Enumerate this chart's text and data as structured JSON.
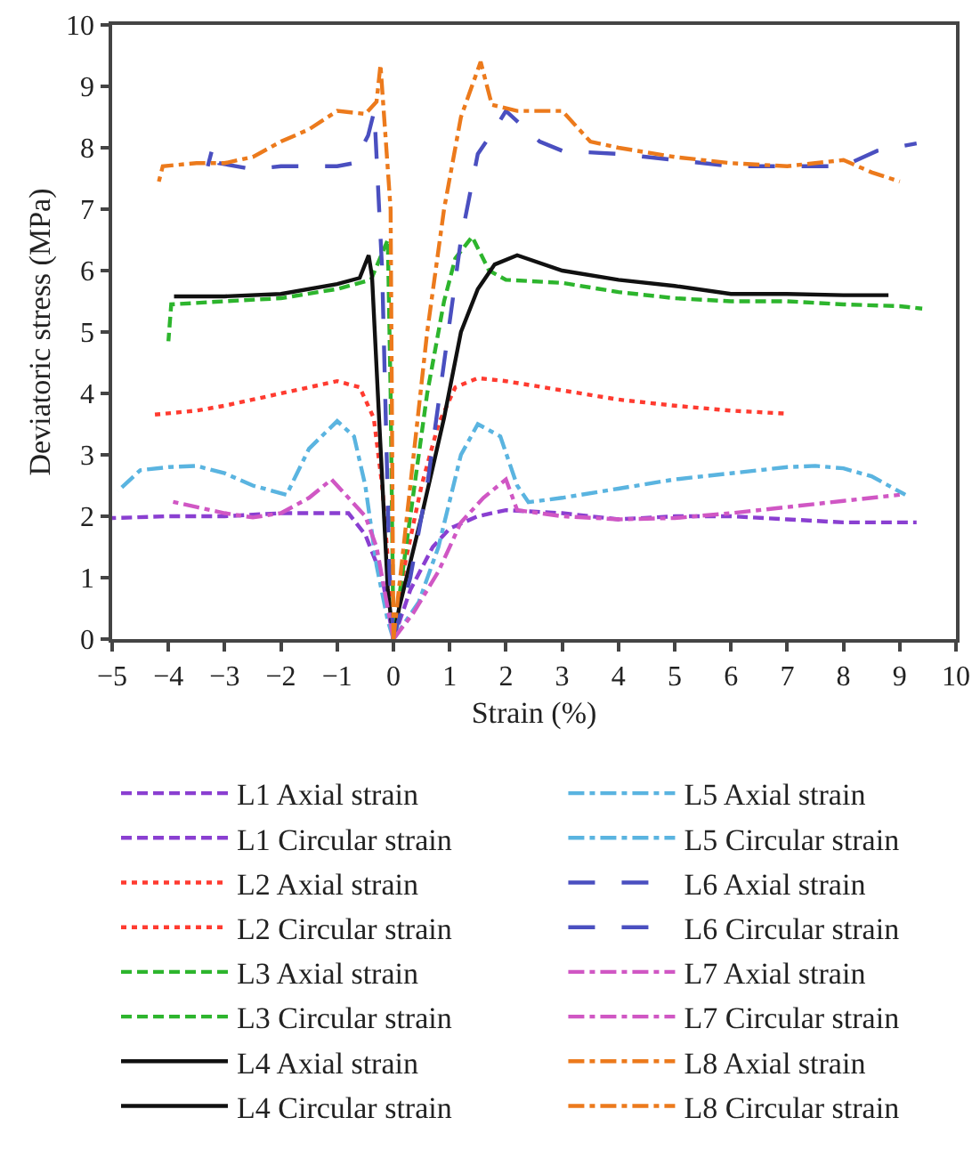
{
  "chart_data": {
    "type": "line",
    "xlabel": "Strain (%)",
    "ylabel": "Deviatoric stress (MPa)",
    "xlim": [
      -5,
      10
    ],
    "xticks": [
      -5,
      -4,
      -3,
      -2,
      -1,
      0,
      1,
      2,
      3,
      4,
      5,
      6,
      7,
      8,
      9,
      10
    ],
    "ylim": [
      0,
      10
    ],
    "yticks": [
      0,
      1,
      2,
      3,
      4,
      5,
      6,
      7,
      8,
      9,
      10
    ],
    "grid": false,
    "legend": "bottom",
    "marker": "none",
    "series": [
      {
        "name": "L1 Axial strain",
        "color": "#8a3fd1",
        "line_style": "dashed",
        "x": [
          0,
          0.3,
          0.7,
          1,
          1.5,
          2,
          3,
          4,
          5,
          6,
          7,
          8,
          9,
          9.3
        ],
        "values": [
          0,
          0.8,
          1.5,
          1.8,
          2.0,
          2.1,
          2.05,
          1.95,
          2.0,
          2.0,
          1.95,
          1.9,
          1.9,
          1.9
        ]
      },
      {
        "name": "L1 Circular strain",
        "color": "#8a3fd1",
        "line_style": "dashed",
        "x": [
          0,
          -0.2,
          -0.5,
          -0.8,
          -1.5,
          -2,
          -3,
          -4,
          -5
        ],
        "values": [
          0,
          1.0,
          1.7,
          2.05,
          2.05,
          2.05,
          2.0,
          2.0,
          1.97
        ]
      },
      {
        "name": "L2 Axial strain",
        "color": "#ff3b30",
        "line_style": "dotted",
        "x": [
          0,
          0.2,
          0.5,
          0.8,
          1.1,
          1.5,
          2,
          3,
          4,
          5,
          6,
          7
        ],
        "values": [
          0,
          1.2,
          2.5,
          3.5,
          4.1,
          4.25,
          4.2,
          4.05,
          3.9,
          3.8,
          3.72,
          3.67
        ]
      },
      {
        "name": "L2 Circular strain",
        "color": "#ff3b30",
        "line_style": "dotted",
        "x": [
          0,
          -0.1,
          -0.2,
          -0.35,
          -0.6,
          -1,
          -1.5,
          -2,
          -2.5,
          -3,
          -3.5,
          -4.3
        ],
        "values": [
          0,
          1.3,
          2.5,
          3.6,
          4.1,
          4.2,
          4.1,
          4.0,
          3.9,
          3.8,
          3.72,
          3.65
        ]
      },
      {
        "name": "L3 Axial strain",
        "color": "#2db52d",
        "line_style": "dashed",
        "x": [
          0,
          0.3,
          0.6,
          0.9,
          1.1,
          1.4,
          1.7,
          2,
          3,
          4,
          5,
          6,
          7,
          8,
          9,
          9.4
        ],
        "values": [
          0,
          2,
          4,
          5.5,
          6.2,
          6.55,
          6.0,
          5.85,
          5.8,
          5.65,
          5.55,
          5.5,
          5.5,
          5.45,
          5.42,
          5.38
        ]
      },
      {
        "name": "L3 Circular strain",
        "color": "#2db52d",
        "line_style": "dashed",
        "x": [
          0,
          -0.05,
          -0.1,
          -0.4,
          -1,
          -2,
          -3,
          -3.95,
          -4
        ],
        "values": [
          0,
          4,
          6.5,
          5.85,
          5.7,
          5.55,
          5.5,
          5.45,
          4.85
        ]
      },
      {
        "name": "L4 Axial strain",
        "color": "#111111",
        "line_style": "solid",
        "x": [
          0,
          0.1,
          0.5,
          0.9,
          1.2,
          1.5,
          1.8,
          2.2,
          3,
          4,
          5,
          6,
          7,
          8,
          8.8
        ],
        "values": [
          0,
          0.5,
          2.0,
          3.6,
          5.0,
          5.7,
          6.1,
          6.25,
          6.0,
          5.85,
          5.75,
          5.62,
          5.62,
          5.6,
          5.6
        ]
      },
      {
        "name": "L4 Circular strain",
        "color": "#111111",
        "line_style": "solid",
        "x": [
          0,
          -0.1,
          -0.25,
          -0.38,
          -0.44,
          -0.6,
          -1,
          -2,
          -3,
          -3.9
        ],
        "values": [
          0,
          0.8,
          3.5,
          5.9,
          6.25,
          5.88,
          5.78,
          5.62,
          5.58,
          5.58
        ]
      },
      {
        "name": "L5 Axial strain",
        "color": "#5ab4e0",
        "line_style": "dashdot",
        "x": [
          0,
          0.45,
          0.8,
          1.2,
          1.5,
          1.9,
          2.2,
          2.4,
          3,
          4,
          5,
          6,
          7,
          7.5,
          8,
          8.5,
          9.1
        ],
        "values": [
          0,
          0.6,
          1.5,
          3.0,
          3.5,
          3.3,
          2.5,
          2.23,
          2.3,
          2.45,
          2.6,
          2.7,
          2.8,
          2.82,
          2.78,
          2.65,
          2.35
        ]
      },
      {
        "name": "L5 Circular strain",
        "color": "#5ab4e0",
        "line_style": "dashdot",
        "x": [
          0,
          -0.1,
          -0.3,
          -0.5,
          -0.7,
          -1,
          -1.5,
          -1.9,
          -2.5,
          -3,
          -3.5,
          -4,
          -4.5,
          -4.9
        ],
        "values": [
          0,
          0.3,
          1.2,
          2.5,
          3.3,
          3.55,
          3.1,
          2.35,
          2.5,
          2.7,
          2.82,
          2.8,
          2.75,
          2.41
        ]
      },
      {
        "name": "L6 Axial strain",
        "color": "#4a4fc0",
        "line_style": "longdash",
        "x": [
          0,
          0.3,
          0.6,
          0.9,
          1.2,
          1.5,
          1.8,
          2.0,
          2.6,
          3,
          4,
          5,
          6,
          7,
          8,
          8.6,
          9.3
        ],
        "values": [
          0,
          1.0,
          2.5,
          4.5,
          6.5,
          7.9,
          8.3,
          8.6,
          8.1,
          7.95,
          7.9,
          7.8,
          7.7,
          7.7,
          7.7,
          7.95,
          8.07
        ]
      },
      {
        "name": "L6 Circular strain",
        "color": "#4a4fc0",
        "line_style": "longdash",
        "x": [
          0,
          -0.07,
          -0.2,
          -0.34,
          -0.45,
          -0.7,
          -1,
          -1.5,
          -2,
          -2.5,
          -3.1,
          -3.2,
          -3.3
        ],
        "values": [
          0,
          1.1,
          6,
          8.6,
          8.2,
          7.75,
          7.7,
          7.7,
          7.7,
          7.65,
          7.75,
          8.05,
          7.7
        ]
      },
      {
        "name": "L7 Axial strain",
        "color": "#d057c4",
        "line_style": "dashdot",
        "x": [
          0,
          0.35,
          0.8,
          1.2,
          1.6,
          2.0,
          2.2,
          3,
          4,
          5,
          6,
          7,
          8,
          9
        ],
        "values": [
          0,
          0.42,
          1.1,
          1.9,
          2.3,
          2.6,
          2.1,
          2.0,
          1.95,
          1.97,
          2.05,
          2.15,
          2.25,
          2.35
        ]
      },
      {
        "name": "L7 Circular strain",
        "color": "#d057c4",
        "line_style": "dashdot",
        "x": [
          0,
          -0.1,
          -0.3,
          -0.5,
          -1.1,
          -1.5,
          -2,
          -2.5,
          -3,
          -3.5,
          -4
        ],
        "values": [
          0,
          0.5,
          1.5,
          2.0,
          2.6,
          2.3,
          2.05,
          1.98,
          2.05,
          2.15,
          2.25
        ]
      },
      {
        "name": "L8 Axial strain",
        "color": "#ec7a1c",
        "line_style": "dashdot",
        "x": [
          0,
          0.3,
          0.6,
          0.9,
          1.2,
          1.55,
          1.75,
          2.2,
          3,
          3.5,
          4,
          5,
          6,
          7,
          8,
          8.5,
          9
        ],
        "values": [
          0,
          2.5,
          5.0,
          7.0,
          8.5,
          9.4,
          8.7,
          8.6,
          8.6,
          8.1,
          8.0,
          7.85,
          7.75,
          7.7,
          7.8,
          7.6,
          7.45
        ]
      },
      {
        "name": "L8 Circular strain",
        "color": "#ec7a1c",
        "line_style": "dashdot",
        "x": [
          0,
          -0.05,
          -0.23,
          -0.3,
          -0.5,
          -1,
          -1.5,
          -2,
          -2.5,
          -3,
          -3.5,
          -4.1,
          -4.17
        ],
        "values": [
          0,
          7,
          9.35,
          8.75,
          8.55,
          8.6,
          8.3,
          8.1,
          7.85,
          7.75,
          7.75,
          7.7,
          7.45
        ]
      }
    ]
  }
}
